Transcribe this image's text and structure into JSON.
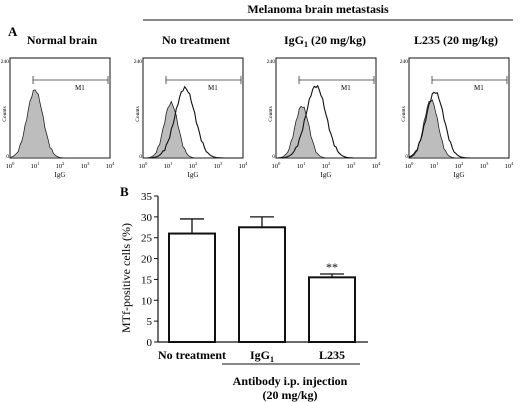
{
  "figure": {
    "panel_a_label": "A",
    "panel_b_label": "B",
    "group_header": "Melanoma brain metastasis",
    "histogram_marker": "M1",
    "histogram_xlabel": "IgG",
    "histogram_ylabel": "Counts",
    "histogram_ymax_tick": "240",
    "histogram_ymin_tick": "0",
    "histogram_xticks": [
      "10",
      "10",
      "10",
      "10",
      "10"
    ],
    "histogram_xtick_exponents": [
      "0",
      "1",
      "2",
      "3",
      "4"
    ]
  },
  "histograms": [
    {
      "title": "Normal brain",
      "title_sub": "",
      "title_suffix": ""
    },
    {
      "title": "No treatment",
      "title_sub": "",
      "title_suffix": ""
    },
    {
      "title": "IgG",
      "title_sub": "1",
      "title_suffix": " (20 mg/kg)"
    },
    {
      "title": "L235 (20 mg/kg)",
      "title_sub": "",
      "title_suffix": ""
    }
  ],
  "chart_data": {
    "type": "bar",
    "categories": [
      "No treatment",
      "IgG",
      "L235"
    ],
    "category_subscripts": [
      "",
      "1",
      ""
    ],
    "values": [
      26,
      27.5,
      15.5
    ],
    "errors": [
      3.5,
      2.5,
      0.8
    ],
    "significance": [
      "",
      "",
      "**"
    ],
    "ylabel": "MTf-positive cells (%)",
    "yticks": [
      0,
      5,
      10,
      15,
      20,
      25,
      30,
      35
    ],
    "ylim": [
      0,
      35
    ],
    "xlabel_line1": "Antibody i.p. injection",
    "xlabel_line2": "(20 mg/kg)",
    "bar_fill": "#ffffff",
    "bar_stroke": "#111111"
  }
}
